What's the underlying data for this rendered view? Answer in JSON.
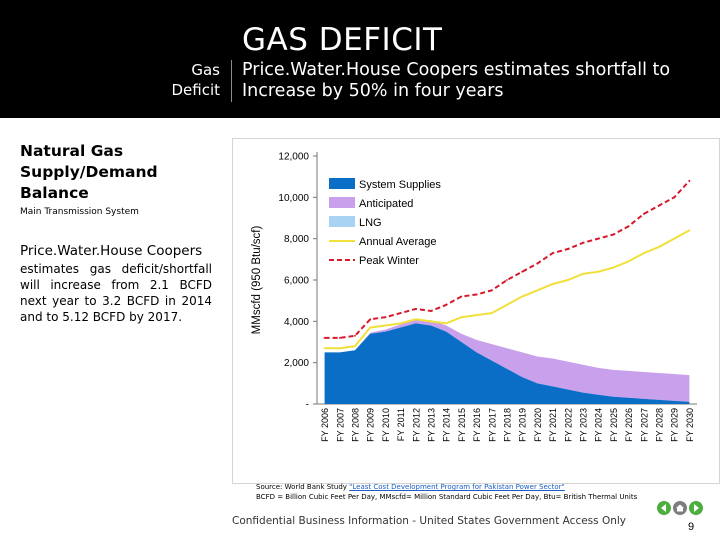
{
  "header": {
    "title": "GAS DEFICIT",
    "subtitle": "Price.Water.House Coopers estimates shortfall to Increase by 50% in four years",
    "section_line1": "Gas",
    "section_line2": "Deficit"
  },
  "panel": {
    "title": "Natural Gas Supply/Demand Balance",
    "system": "Main Transmission System",
    "desc_head": "Price.Water.House Coopers",
    "desc_body": "estimates gas deficit/shortfall will increase from 2.1 BCFD next year to 3.2 BCFD in 2014 and to 5.12 BCFD by 2017."
  },
  "source": {
    "prefix": "Source: World Bank Study",
    "link": "\"Least Cost Development Program for Pakistan Power Sector\"",
    "line2": "BCFD = Billion Cubic Feet Per Day, MMscfd= Million Standard Cubic Feet Per Day, Btu= British Thermal Units"
  },
  "footer": {
    "confidential": "Confidential Business Information - United States Government Access Only",
    "page": "9"
  },
  "colors": {
    "header_bg": "#000000",
    "system_supplies": "#0a6ec7",
    "anticipated": "#c9a0ec",
    "lng": "#a9d3f2",
    "annual_average": "#f1e03a",
    "peak_winter": "#d7192b",
    "nav_green": "#4caf3d"
  },
  "icons": {
    "prev": "arrow-left-icon",
    "home": "home-icon",
    "next": "arrow-right-icon"
  },
  "chart_data": {
    "type": "area",
    "ylabel": "MMscfd (950 Btu/scf)",
    "xlabel": "",
    "ylim": [
      0,
      12000
    ],
    "yticks": [
      0,
      2000,
      4000,
      6000,
      8000,
      10000,
      12000
    ],
    "ytick_labels": [
      "-",
      "2,000",
      "4,000",
      "6,000",
      "8,000",
      "10,000",
      "12,000"
    ],
    "legend_position": "top-left inside plot",
    "categories": [
      "FY 2006",
      "FY 2007",
      "FY 2008",
      "FY 2009",
      "FY 2010",
      "FY 2011",
      "FY 2012",
      "FY 2013",
      "FY 2014",
      "FY 2015",
      "FY 2016",
      "FY 2017",
      "FY 2018",
      "FY 2019",
      "FY 2020",
      "FY 2021",
      "FY 2022",
      "FY 2023",
      "FY 2024",
      "FY 2025",
      "FY 2026",
      "FY 2027",
      "FY 2028",
      "FY 2029",
      "FY 2030"
    ],
    "series": [
      {
        "name": "System Supplies",
        "kind": "area",
        "values": [
          2500,
          2500,
          2600,
          3400,
          3500,
          3700,
          3900,
          3800,
          3500,
          3000,
          2500,
          2100,
          1700,
          1300,
          1000,
          850,
          700,
          550,
          450,
          350,
          300,
          250,
          200,
          150,
          100
        ]
      },
      {
        "name": "Anticipated",
        "kind": "area",
        "values": [
          0,
          0,
          0,
          50,
          100,
          150,
          200,
          250,
          300,
          400,
          600,
          800,
          1000,
          1200,
          1300,
          1350,
          1350,
          1350,
          1300,
          1300,
          1300,
          1300,
          1300,
          1300,
          1300
        ]
      },
      {
        "name": "LNG",
        "kind": "area",
        "values": [
          0,
          0,
          0,
          0,
          0,
          0,
          0,
          0,
          0,
          0,
          0,
          0,
          0,
          0,
          0,
          0,
          0,
          0,
          0,
          0,
          0,
          0,
          0,
          0,
          0
        ]
      },
      {
        "name": "Annual Average",
        "kind": "line",
        "values": [
          2700,
          2700,
          2800,
          3700,
          3800,
          3900,
          4100,
          4000,
          3900,
          4200,
          4300,
          4400,
          4800,
          5200,
          5500,
          5800,
          6000,
          6300,
          6400,
          6600,
          6900,
          7300,
          7600,
          8000,
          8400
        ]
      },
      {
        "name": "Peak Winter",
        "kind": "dashed-line",
        "values": [
          3200,
          3200,
          3300,
          4100,
          4200,
          4400,
          4600,
          4500,
          4800,
          5200,
          5300,
          5500,
          6000,
          6400,
          6800,
          7300,
          7500,
          7800,
          8000,
          8200,
          8600,
          9200,
          9600,
          10000,
          10800
        ]
      }
    ]
  }
}
